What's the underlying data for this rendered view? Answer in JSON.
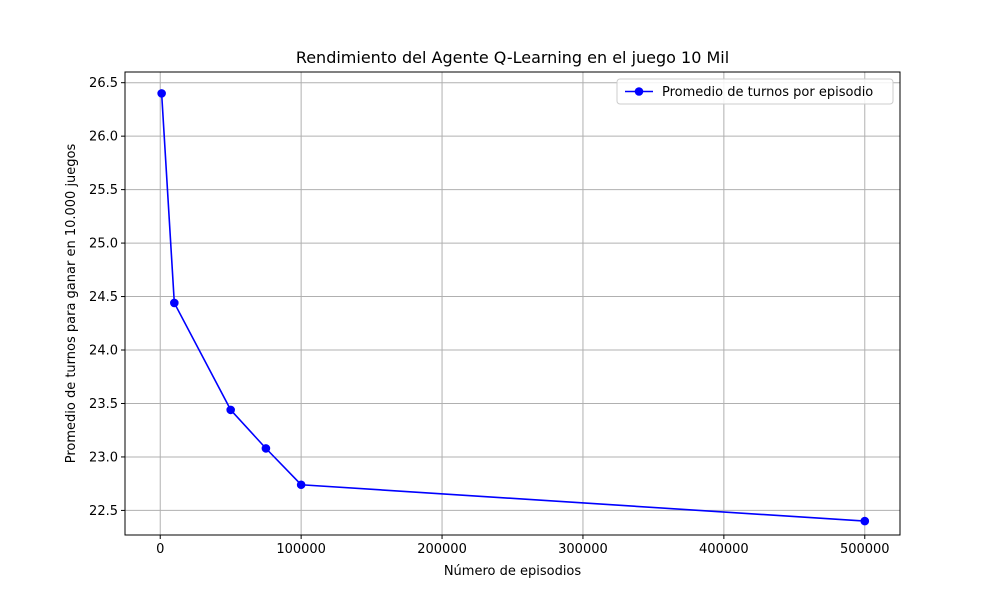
{
  "chart_data": {
    "type": "line",
    "title": "Rendimiento del Agente Q-Learning en el juego 10 Mil",
    "xlabel": "Número de episodios",
    "ylabel": "Promedio de turnos para ganar en 10.000 juegos",
    "xlim": [
      -25000,
      525000
    ],
    "ylim": [
      22.27,
      26.6
    ],
    "x_ticks": [
      0,
      100000,
      200000,
      300000,
      400000,
      500000
    ],
    "y_ticks": [
      22.5,
      23.0,
      23.5,
      24.0,
      24.5,
      25.0,
      25.5,
      26.0,
      26.5
    ],
    "x_tick_labels": [
      "0",
      "100000",
      "200000",
      "300000",
      "400000",
      "500000"
    ],
    "y_tick_labels": [
      "22.5",
      "23.0",
      "23.5",
      "24.0",
      "24.5",
      "25.0",
      "25.5",
      "26.0",
      "26.5"
    ],
    "grid": true,
    "legend_position": "top-right",
    "series": [
      {
        "name": "Promedio de turnos por episodio",
        "color": "#0000ff",
        "marker": "circle",
        "x": [
          1000,
          10000,
          50000,
          75000,
          100000,
          500000
        ],
        "y": [
          26.4,
          24.44,
          23.44,
          23.08,
          22.74,
          22.4
        ]
      }
    ]
  }
}
